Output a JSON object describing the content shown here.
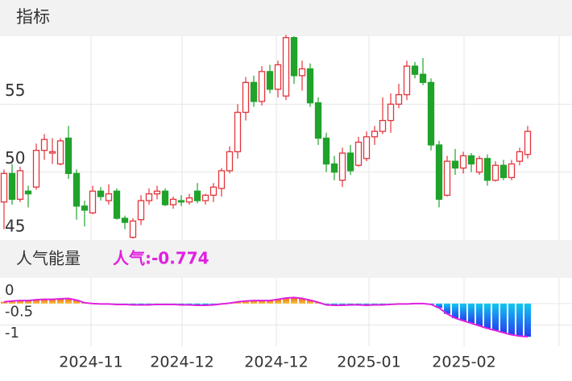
{
  "header": {
    "title": "指标"
  },
  "chart_data": [
    {
      "type": "candlestick",
      "categories": [
        null,
        null,
        null,
        null,
        null,
        null,
        null,
        null,
        null,
        null,
        null,
        null,
        null,
        null,
        null,
        null,
        null,
        null,
        null,
        null,
        null,
        null,
        null,
        null,
        null,
        null,
        null,
        null,
        null,
        null,
        null,
        null,
        null,
        null,
        null,
        null,
        null,
        null,
        null,
        null,
        null,
        null,
        null,
        null,
        null,
        null,
        null,
        null,
        null,
        null,
        null,
        null,
        null,
        null,
        null,
        null,
        null,
        null,
        null,
        null,
        null,
        null,
        null,
        null,
        null,
        null
      ],
      "open": [
        47.8,
        49.9,
        48.0,
        48.6,
        48.9,
        51.6,
        51.4,
        50.6,
        52.5,
        49.9,
        47.5,
        47.0,
        48.6,
        47.9,
        48.6,
        46.6,
        45.2,
        46.5,
        47.9,
        48.4,
        48.6,
        47.6,
        47.9,
        47.8,
        48.6,
        47.9,
        48.3,
        48.8,
        50.1,
        51.5,
        54.4,
        56.6,
        55.2,
        57.4,
        56.1,
        55.6,
        59.9,
        57.1,
        57.6,
        55.1,
        52.5,
        50.6,
        49.4,
        51.4,
        50.5,
        51.0,
        52.6,
        53.0,
        53.8,
        55.0,
        55.7,
        57.8,
        57.2,
        56.6,
        52.0,
        48.3,
        50.8,
        50.3,
        51.2,
        50.0,
        51.0,
        49.4,
        50.5,
        49.6,
        50.8,
        51.3
      ],
      "high": [
        50.2,
        50.6,
        50.4,
        49.0,
        52.1,
        52.8,
        52.5,
        52.5,
        53.4,
        50.2,
        47.9,
        49.0,
        48.9,
        49.1,
        48.8,
        46.8,
        46.6,
        48.3,
        48.8,
        49.0,
        48.8,
        48.2,
        48.3,
        48.4,
        49.2,
        48.4,
        49.2,
        50.3,
        51.9,
        55.0,
        57.0,
        57.1,
        57.8,
        57.9,
        58.2,
        60.1,
        60.0,
        58.2,
        58.0,
        55.5,
        52.9,
        51.2,
        51.8,
        52.0,
        52.6,
        53.0,
        53.4,
        55.5,
        55.8,
        56.5,
        58.2,
        58.1,
        58.4,
        56.9,
        52.3,
        51.2,
        51.7,
        51.5,
        51.4,
        51.2,
        51.3,
        50.8,
        50.9,
        50.9,
        51.8,
        53.4
      ],
      "low": [
        45.8,
        47.6,
        47.8,
        47.4,
        48.7,
        50.9,
        50.6,
        50.5,
        49.5,
        46.5,
        46.0,
        46.9,
        47.9,
        47.6,
        46.5,
        45.8,
        45.1,
        46.1,
        47.6,
        48.0,
        47.5,
        47.3,
        47.5,
        47.6,
        47.7,
        47.6,
        47.8,
        48.2,
        49.9,
        51.0,
        53.8,
        54.8,
        54.9,
        55.8,
        55.5,
        55.3,
        56.5,
        56.0,
        54.8,
        52.0,
        50.0,
        49.4,
        48.9,
        49.8,
        50.4,
        50.8,
        52.0,
        52.8,
        52.9,
        54.7,
        55.3,
        56.9,
        56.4,
        51.6,
        47.4,
        48.2,
        49.8,
        49.9,
        50.0,
        49.8,
        49.0,
        49.3,
        49.4,
        49.4,
        50.5,
        51.0
      ],
      "close": [
        49.9,
        48.0,
        50.1,
        48.4,
        51.6,
        52.4,
        51.5,
        52.3,
        49.9,
        47.5,
        47.2,
        48.6,
        48.2,
        48.4,
        46.6,
        46.3,
        46.4,
        47.9,
        48.4,
        48.6,
        47.6,
        48.0,
        47.8,
        48.1,
        47.9,
        48.3,
        48.9,
        50.1,
        51.5,
        54.4,
        56.6,
        55.2,
        57.4,
        56.1,
        57.9,
        59.9,
        57.1,
        57.6,
        55.1,
        52.5,
        50.6,
        50.0,
        51.4,
        50.1,
        52.2,
        52.6,
        53.0,
        53.8,
        55.0,
        55.7,
        57.8,
        57.2,
        56.6,
        52.0,
        48.0,
        50.8,
        50.3,
        51.2,
        50.6,
        51.0,
        49.4,
        50.5,
        49.6,
        50.6,
        51.5,
        53.0
      ],
      "up_color": "#e3343b",
      "down_color": "#1fa32a",
      "ylim": [
        45,
        60
      ],
      "yticks": [
        45,
        50,
        55
      ],
      "xticks": [
        {
          "value": 10.8,
          "label": "2024-11"
        },
        {
          "value": 22.1,
          "label": "2024-12"
        },
        {
          "value": 33.8,
          "label": "2024-12"
        },
        {
          "value": 45.3,
          "label": "2025-01"
        },
        {
          "value": 57.1,
          "label": "2025-02"
        }
      ],
      "grid": true
    },
    {
      "type": "bar",
      "title": "人气能量",
      "subtitle": "人气:-0.774",
      "categories": [
        null,
        null,
        null,
        null,
        null,
        null,
        null,
        null,
        null,
        null,
        null,
        null,
        null,
        null,
        null,
        null,
        null,
        null,
        null,
        null,
        null,
        null,
        null,
        null,
        null,
        null,
        null,
        null,
        null,
        null,
        null,
        null,
        null,
        null,
        null,
        null,
        null,
        null,
        null,
        null,
        null,
        null,
        null,
        null,
        null,
        null,
        null,
        null,
        null,
        null,
        null,
        null,
        null,
        null,
        null,
        null,
        null,
        null,
        null,
        null,
        null,
        null,
        null,
        null,
        null,
        null
      ],
      "values": [
        0.04,
        0.06,
        0.07,
        0.07,
        0.09,
        0.1,
        0.1,
        0.11,
        0.12,
        0.08,
        0.02,
        0,
        -0.01,
        -0.01,
        -0.02,
        -0.02,
        -0.03,
        -0.03,
        -0.03,
        -0.02,
        -0.02,
        -0.02,
        -0.03,
        -0.03,
        -0.04,
        -0.04,
        -0.03,
        -0.01,
        0.01,
        0.04,
        0.06,
        0.07,
        0.07,
        0.07,
        0.1,
        0.13,
        0.14,
        0.12,
        0.08,
        0.03,
        -0.03,
        -0.04,
        -0.04,
        -0.03,
        -0.03,
        -0.04,
        -0.03,
        -0.03,
        -0.02,
        -0.01,
        -0.01,
        0,
        0,
        -0.02,
        -0.1,
        -0.24,
        -0.34,
        -0.4,
        -0.46,
        -0.52,
        -0.58,
        -0.63,
        -0.68,
        -0.73,
        -0.76,
        -0.774
      ],
      "line_color": "#e020e0",
      "ylim": [
        -1,
        0.6
      ],
      "yticks": [
        0,
        -0.5,
        -1
      ],
      "grid": true
    }
  ]
}
